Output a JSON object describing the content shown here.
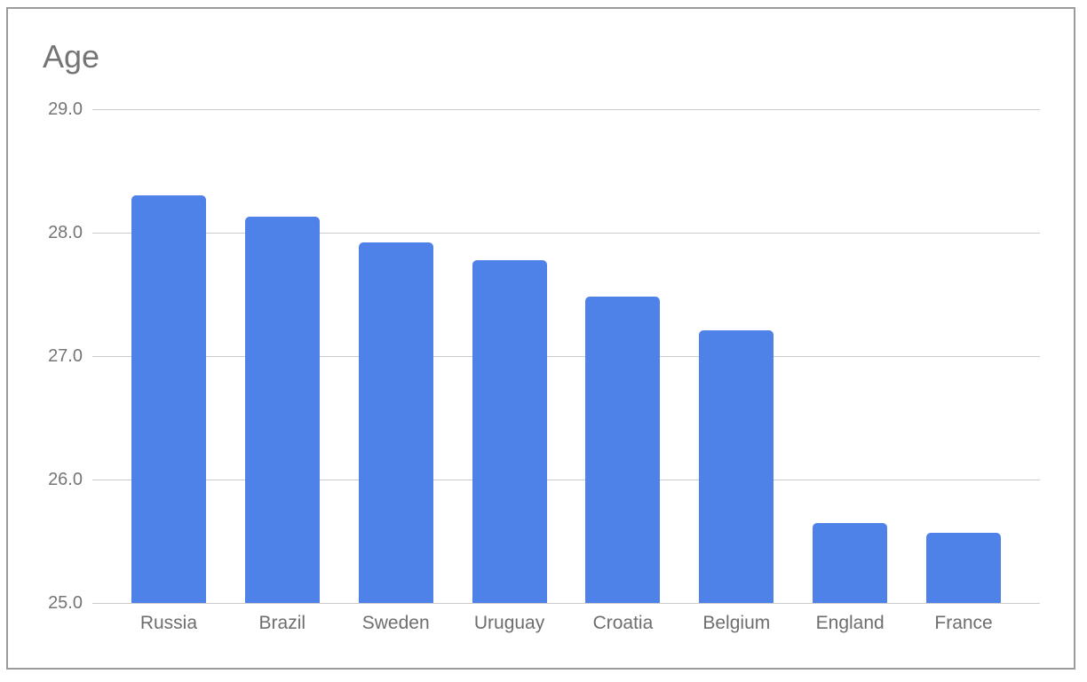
{
  "chart_data": {
    "type": "bar",
    "title": "Age",
    "categories": [
      "Russia",
      "Brazil",
      "Sweden",
      "Uruguay",
      "Croatia",
      "Belgium",
      "England",
      "France"
    ],
    "values": [
      28.3,
      28.13,
      27.92,
      27.78,
      27.48,
      27.21,
      25.65,
      25.57
    ],
    "xlabel": "",
    "ylabel": "",
    "ylim": [
      25.0,
      29.0
    ],
    "yticks": [
      29.0,
      28.0,
      27.0,
      26.0,
      25.0
    ],
    "ytick_labels": [
      "29.0",
      "28.0",
      "27.0",
      "26.0",
      "25.0"
    ],
    "grid": true,
    "legend": "none",
    "series_name": "Age"
  },
  "colors": {
    "bar": "#4e82e8",
    "gridline": "#cccccc",
    "title_text": "#757575",
    "y_axis_text": "#757575",
    "x_axis_text": "#6e6e6e",
    "card_border": "#9b9b9b",
    "background": "#ffffff"
  }
}
